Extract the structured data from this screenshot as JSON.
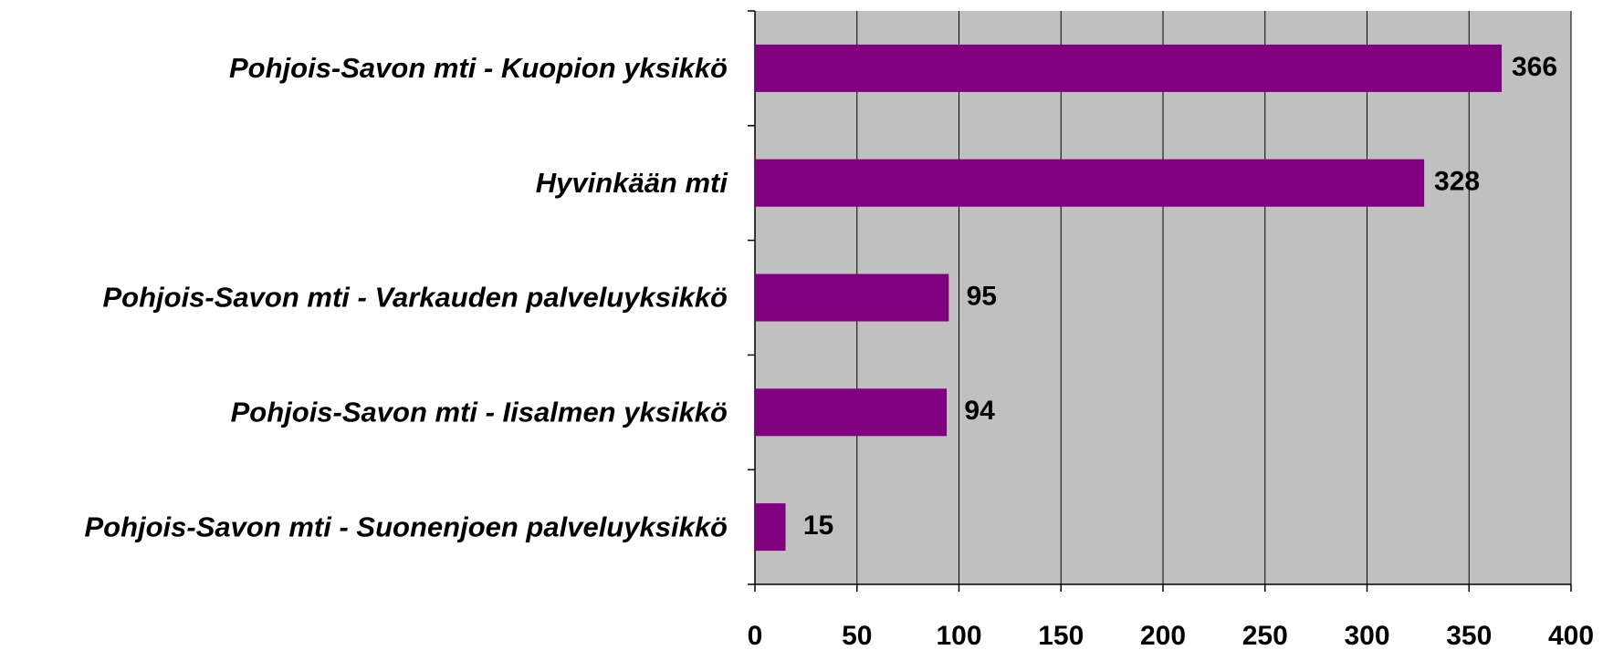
{
  "chart_data": {
    "type": "bar",
    "orientation": "horizontal",
    "categories": [
      "Pohjois-Savon mti - Kuopion yksikkö",
      "Hyvinkään mti",
      "Pohjois-Savon mti - Varkauden palveluyksikkö",
      "Pohjois-Savon mti - Iisalmen yksikkö",
      "Pohjois-Savon mti - Suonenjoen palveluyksikkö"
    ],
    "values": [
      366,
      328,
      95,
      94,
      15
    ],
    "color": "#800080",
    "xlim": [
      0,
      400
    ],
    "xticks": [
      0,
      50,
      100,
      150,
      200,
      250,
      300,
      350,
      400
    ],
    "grid": true
  }
}
